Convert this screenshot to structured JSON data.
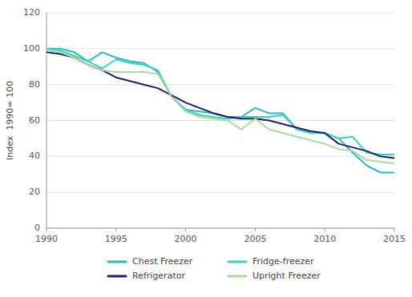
{
  "chart_data": {
    "type": "line",
    "ylabel": "Index  1990= 100",
    "x": [
      1990,
      1991,
      1992,
      1993,
      1994,
      1995,
      1996,
      1997,
      1998,
      1999,
      2000,
      2001,
      2002,
      2003,
      2004,
      2005,
      2006,
      2007,
      2008,
      2009,
      2010,
      2011,
      2012,
      2013,
      2014,
      2015
    ],
    "series": [
      {
        "name": "Chest Freezer",
        "color": "#29b8c8",
        "values": [
          100,
          100,
          98,
          93,
          98,
          95,
          93,
          92,
          87,
          73,
          66,
          65,
          64,
          62,
          62,
          67,
          64,
          64,
          55,
          54,
          53,
          50,
          42,
          35,
          31,
          31
        ]
      },
      {
        "name": "Fridge-freezer",
        "color": "#3dcfbb",
        "values": [
          100,
          99,
          96,
          93,
          89,
          94,
          92,
          91,
          88,
          73,
          66,
          63,
          62,
          61,
          62,
          62,
          62,
          63,
          55,
          53,
          53,
          50,
          51,
          42,
          41,
          41
        ]
      },
      {
        "name": "Refrigerator",
        "color": "#1a1f6e",
        "values": [
          98,
          97,
          95,
          91,
          88,
          84,
          82,
          80,
          78,
          74,
          70,
          67,
          64,
          62,
          61,
          61,
          60,
          58,
          56,
          54,
          53,
          47,
          45,
          43,
          40,
          39
        ]
      },
      {
        "name": "Upright Freezer",
        "color": "#a8daa0",
        "values": [
          99,
          98,
          95,
          91,
          88,
          87,
          87,
          87,
          86,
          73,
          65,
          62,
          61,
          60,
          55,
          61,
          55,
          53,
          51,
          49,
          47,
          44,
          43,
          38,
          37,
          36
        ]
      }
    ],
    "xlim": [
      1990,
      2015
    ],
    "xticks": [
      1990,
      1995,
      2000,
      2005,
      2010,
      2015
    ],
    "ylim": [
      0,
      120
    ],
    "yticks": [
      0,
      20,
      40,
      60,
      80,
      100,
      120
    ],
    "grid": true,
    "legend": "bottom"
  }
}
